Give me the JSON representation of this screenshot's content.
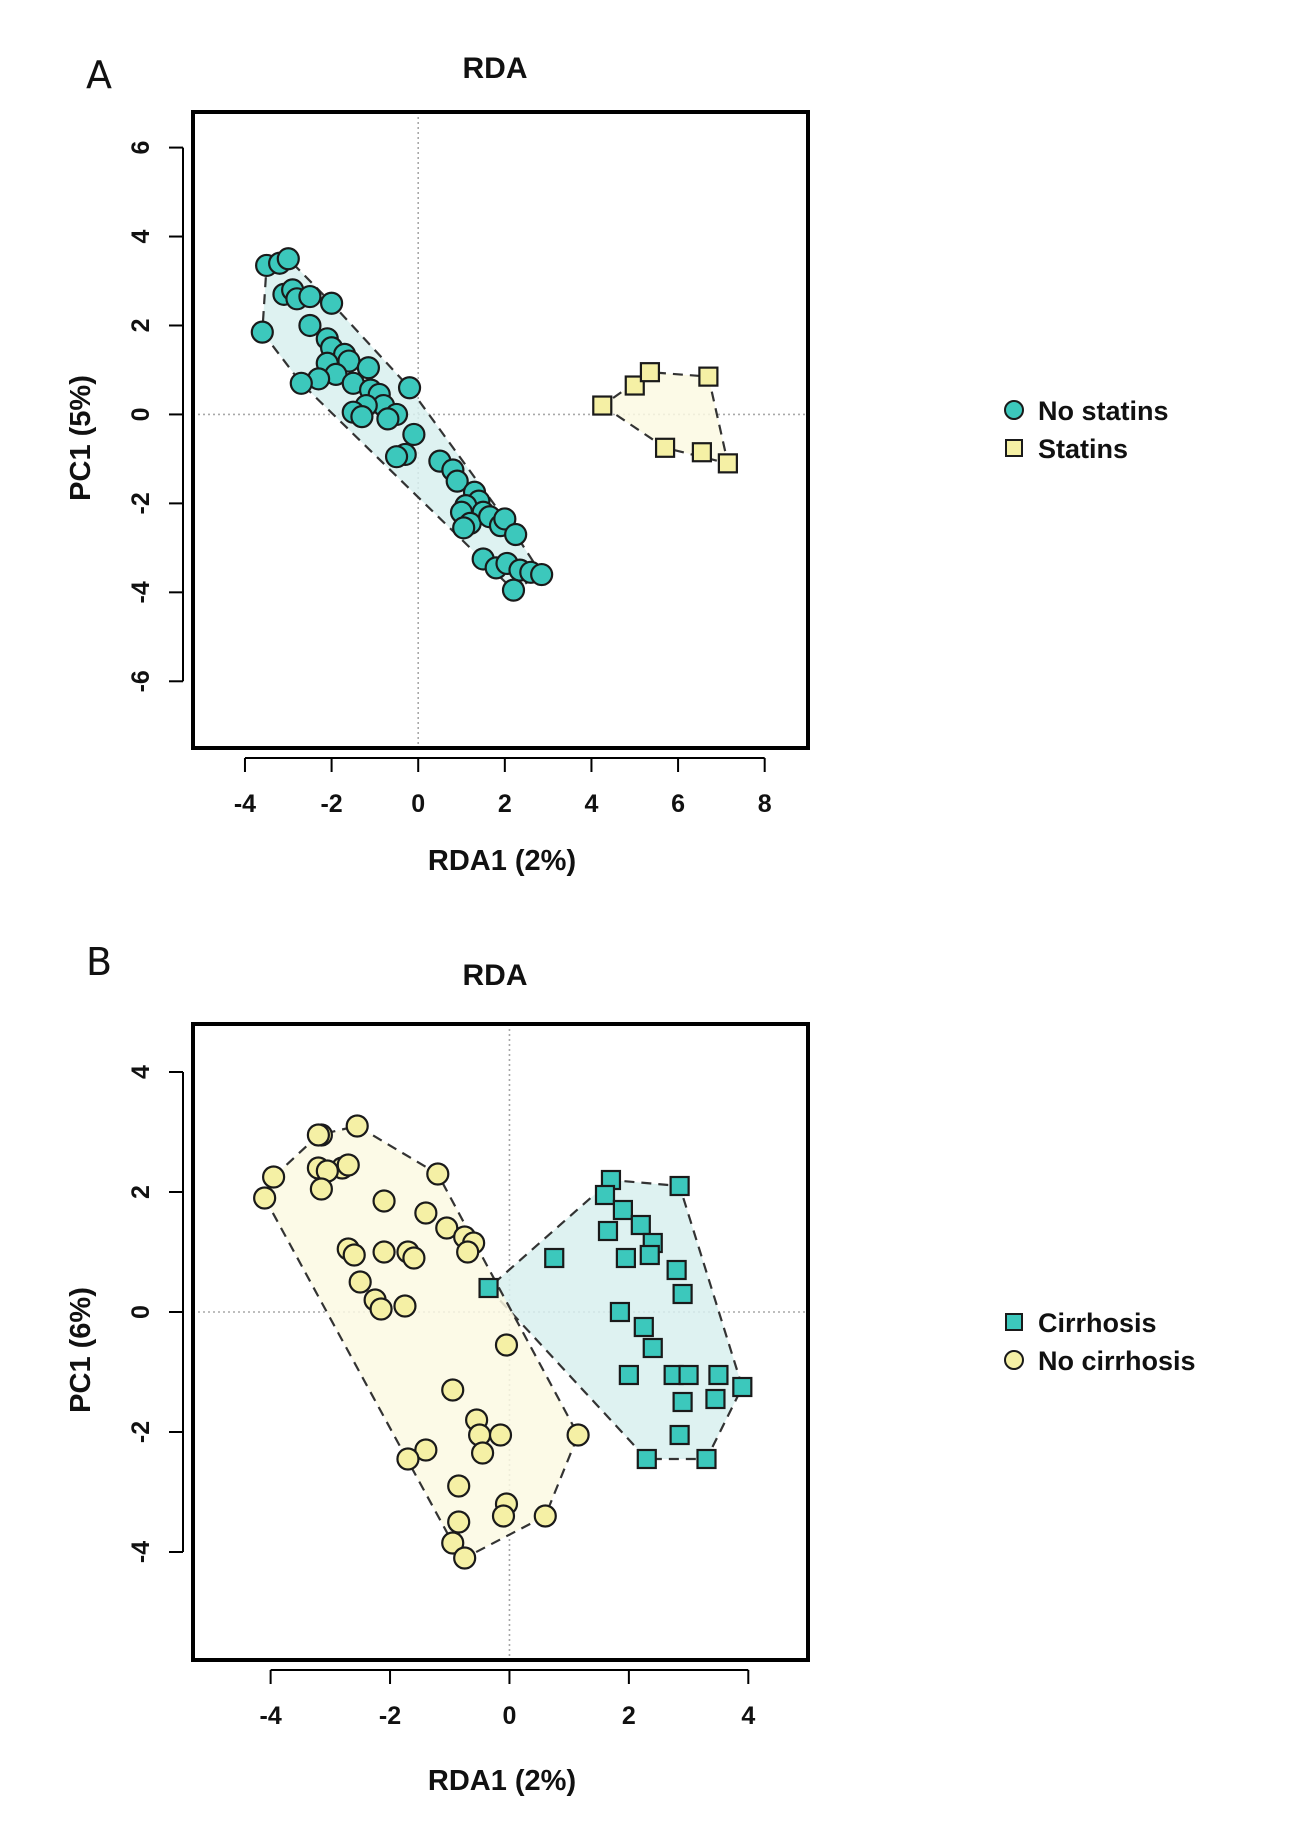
{
  "chart_data": [
    {
      "panel_label": "A",
      "type": "scatter",
      "title": "RDA",
      "xlabel": "RDA1 (2%)",
      "ylabel": "PC1 (5%)",
      "xlim": [
        -5.2,
        9.0
      ],
      "ylim": [
        -7.5,
        6.8
      ],
      "xticks": [
        -4,
        -2,
        0,
        2,
        4,
        6,
        8
      ],
      "yticks": [
        -6,
        -4,
        -2,
        0,
        2,
        4,
        6
      ],
      "reference_lines": {
        "x": 0,
        "y": 0
      },
      "series": [
        {
          "name": "No statins",
          "marker": "circle",
          "color": "#3cc8bc",
          "hull_fill": "#d8f0ee",
          "points": [
            [
              -3.5,
              3.35
            ],
            [
              -3.2,
              3.4
            ],
            [
              -3.0,
              3.5
            ],
            [
              -3.1,
              2.7
            ],
            [
              -2.9,
              2.8
            ],
            [
              -2.8,
              2.6
            ],
            [
              -2.5,
              2.65
            ],
            [
              -2.0,
              2.5
            ],
            [
              -2.5,
              2.0
            ],
            [
              -3.6,
              1.85
            ],
            [
              -2.1,
              1.7
            ],
            [
              -2.0,
              1.5
            ],
            [
              -1.7,
              1.35
            ],
            [
              -1.6,
              1.2
            ],
            [
              -2.1,
              1.15
            ],
            [
              -1.15,
              1.05
            ],
            [
              -1.9,
              0.9
            ],
            [
              -2.3,
              0.8
            ],
            [
              -2.7,
              0.7
            ],
            [
              -1.5,
              0.7
            ],
            [
              -1.1,
              0.55
            ],
            [
              -0.9,
              0.45
            ],
            [
              -0.8,
              0.2
            ],
            [
              -1.2,
              0.2
            ],
            [
              -1.5,
              0.05
            ],
            [
              -0.5,
              0.0
            ],
            [
              -1.3,
              -0.05
            ],
            [
              -0.7,
              -0.1
            ],
            [
              -0.2,
              0.6
            ],
            [
              -0.1,
              -0.45
            ],
            [
              -0.3,
              -0.9
            ],
            [
              -0.5,
              -0.95
            ],
            [
              0.5,
              -1.05
            ],
            [
              0.8,
              -1.25
            ],
            [
              0.9,
              -1.5
            ],
            [
              1.3,
              -1.75
            ],
            [
              1.4,
              -1.95
            ],
            [
              1.1,
              -2.05
            ],
            [
              1.0,
              -2.2
            ],
            [
              1.5,
              -2.2
            ],
            [
              1.2,
              -2.45
            ],
            [
              1.65,
              -2.3
            ],
            [
              1.9,
              -2.5
            ],
            [
              2.0,
              -2.35
            ],
            [
              1.05,
              -2.55
            ],
            [
              2.25,
              -2.7
            ],
            [
              1.5,
              -3.25
            ],
            [
              1.8,
              -3.45
            ],
            [
              2.05,
              -3.35
            ],
            [
              2.35,
              -3.5
            ],
            [
              2.6,
              -3.55
            ],
            [
              2.85,
              -3.6
            ],
            [
              2.2,
              -3.95
            ]
          ]
        },
        {
          "name": "Statins",
          "marker": "square",
          "color": "#f5f0a5",
          "hull_fill": "#fbf9e3",
          "points": [
            [
              4.25,
              0.2
            ],
            [
              5.0,
              0.65
            ],
            [
              5.35,
              0.95
            ],
            [
              6.7,
              0.85
            ],
            [
              5.7,
              -0.75
            ],
            [
              6.55,
              -0.85
            ],
            [
              7.15,
              -1.1
            ]
          ]
        }
      ]
    },
    {
      "panel_label": "B",
      "type": "scatter",
      "title": "RDA",
      "xlabel": "RDA1 (2%)",
      "ylabel": "PC1 (6%)",
      "xlim": [
        -5.3,
        5.0
      ],
      "ylim": [
        -5.8,
        4.8
      ],
      "xticks": [
        -4,
        -2,
        0,
        2,
        4
      ],
      "yticks": [
        -4,
        -2,
        0,
        2,
        4
      ],
      "reference_lines": {
        "x": 0,
        "y": 0
      },
      "series": [
        {
          "name": "Cirrhosis",
          "marker": "square",
          "color": "#3cc8bc",
          "hull_fill": "#d8f0ee",
          "points": [
            [
              1.7,
              2.2
            ],
            [
              2.85,
              2.1
            ],
            [
              1.6,
              1.95
            ],
            [
              1.9,
              1.7
            ],
            [
              1.65,
              1.35
            ],
            [
              2.2,
              1.45
            ],
            [
              2.4,
              1.15
            ],
            [
              2.35,
              0.95
            ],
            [
              0.75,
              0.9
            ],
            [
              1.95,
              0.9
            ],
            [
              2.8,
              0.7
            ],
            [
              -0.35,
              0.4
            ],
            [
              2.9,
              0.3
            ],
            [
              1.85,
              0.0
            ],
            [
              2.25,
              -0.25
            ],
            [
              2.4,
              -0.6
            ],
            [
              2.0,
              -1.05
            ],
            [
              2.75,
              -1.05
            ],
            [
              3.0,
              -1.05
            ],
            [
              3.5,
              -1.05
            ],
            [
              2.9,
              -1.5
            ],
            [
              3.45,
              -1.45
            ],
            [
              3.9,
              -1.25
            ],
            [
              2.85,
              -2.05
            ],
            [
              2.3,
              -2.45
            ],
            [
              3.3,
              -2.45
            ]
          ]
        },
        {
          "name": "No cirrhosis",
          "marker": "circle",
          "color": "#f5f0a5",
          "hull_fill": "#fbf9e3",
          "points": [
            [
              -2.55,
              3.1
            ],
            [
              -3.15,
              2.95
            ],
            [
              -3.2,
              2.95
            ],
            [
              -3.2,
              2.4
            ],
            [
              -2.8,
              2.4
            ],
            [
              -2.7,
              2.45
            ],
            [
              -3.05,
              2.35
            ],
            [
              -3.95,
              2.25
            ],
            [
              -1.2,
              2.3
            ],
            [
              -4.1,
              1.9
            ],
            [
              -3.15,
              2.05
            ],
            [
              -2.1,
              1.85
            ],
            [
              -1.4,
              1.65
            ],
            [
              -1.05,
              1.4
            ],
            [
              -0.75,
              1.25
            ],
            [
              -0.6,
              1.15
            ],
            [
              -2.7,
              1.05
            ],
            [
              -2.6,
              0.95
            ],
            [
              -2.1,
              1.0
            ],
            [
              -1.7,
              1.0
            ],
            [
              -1.6,
              0.9
            ],
            [
              -0.7,
              1.0
            ],
            [
              -2.5,
              0.5
            ],
            [
              -2.25,
              0.2
            ],
            [
              -2.15,
              0.05
            ],
            [
              -1.75,
              0.1
            ],
            [
              -0.05,
              -0.55
            ],
            [
              -0.95,
              -1.3
            ],
            [
              -0.55,
              -1.8
            ],
            [
              -0.5,
              -2.05
            ],
            [
              -0.15,
              -2.05
            ],
            [
              -0.45,
              -2.35
            ],
            [
              1.15,
              -2.05
            ],
            [
              -1.4,
              -2.3
            ],
            [
              -1.7,
              -2.45
            ],
            [
              -0.85,
              -2.9
            ],
            [
              -0.05,
              -3.2
            ],
            [
              -0.1,
              -3.4
            ],
            [
              0.6,
              -3.4
            ],
            [
              -0.85,
              -3.5
            ],
            [
              -0.95,
              -3.85
            ],
            [
              -0.75,
              -4.1
            ]
          ]
        }
      ]
    }
  ]
}
